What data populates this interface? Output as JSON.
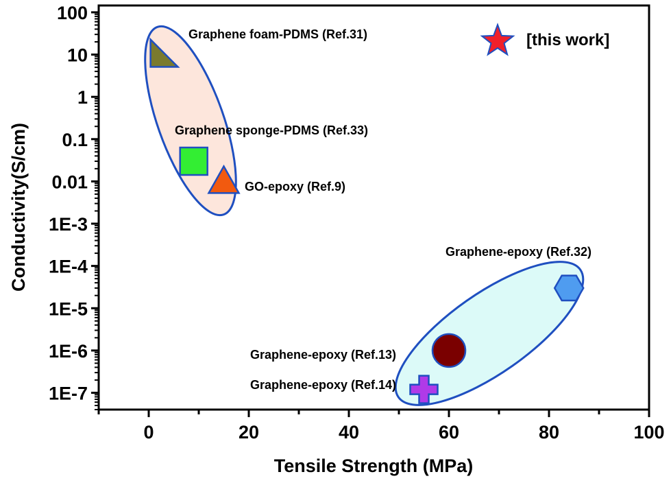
{
  "chart_data": {
    "type": "scatter",
    "title": "",
    "xlabel": "Tensile Strength (MPa)",
    "ylabel": "Conductivity(S/cm)",
    "xlim": [
      -10,
      100
    ],
    "ylim": [
      4e-08,
      145
    ],
    "yscale": "log",
    "grid": false,
    "x_ticks": [
      0,
      20,
      40,
      60,
      80,
      100
    ],
    "x_tick_labels": [
      "0",
      "20",
      "40",
      "60",
      "80",
      "100"
    ],
    "y_ticks": [
      100,
      10,
      1,
      0.1,
      0.01,
      0.001,
      0.0001,
      1e-05,
      1e-06,
      1e-07
    ],
    "y_tick_labels": [
      "100",
      "10",
      "1",
      "0.1",
      "0.01",
      "1E-3",
      "1E-4",
      "1E-5",
      "1E-6",
      "1E-7"
    ],
    "points": [
      {
        "label": "Graphene foam-PDMS (Ref.31)",
        "x": 2,
        "y": 10,
        "marker": "right-triangle",
        "color": "#7a7a2e"
      },
      {
        "label": "Graphene sponge-PDMS (Ref.33)",
        "x": 9,
        "y": 0.03,
        "marker": "square",
        "color": "#33ee33"
      },
      {
        "label": "GO-epoxy (Ref.9)",
        "x": 15,
        "y": 0.01,
        "marker": "triangle",
        "color": "#f25a0f"
      },
      {
        "label": "Graphene-epoxy (Ref.32)",
        "x": 84,
        "y": 3e-05,
        "marker": "hexagon",
        "color": "#4f9cf0"
      },
      {
        "label": "Graphene-epoxy (Ref.13)",
        "x": 60,
        "y": 1e-06,
        "marker": "circle",
        "color": "#7a0000"
      },
      {
        "label": "Graphene-epoxy (Ref.14)",
        "x": 55,
        "y": 1.2e-07,
        "marker": "plus",
        "color": "#b03ae8"
      }
    ],
    "groups": [
      {
        "fill": "#fde6dc",
        "stroke": "#1f4fc0"
      },
      {
        "fill": "#dcfaf8",
        "stroke": "#1f4fc0"
      }
    ],
    "legend": {
      "label": "[this work]",
      "marker": "star",
      "color": "#f0202a",
      "position": "top-right"
    }
  }
}
